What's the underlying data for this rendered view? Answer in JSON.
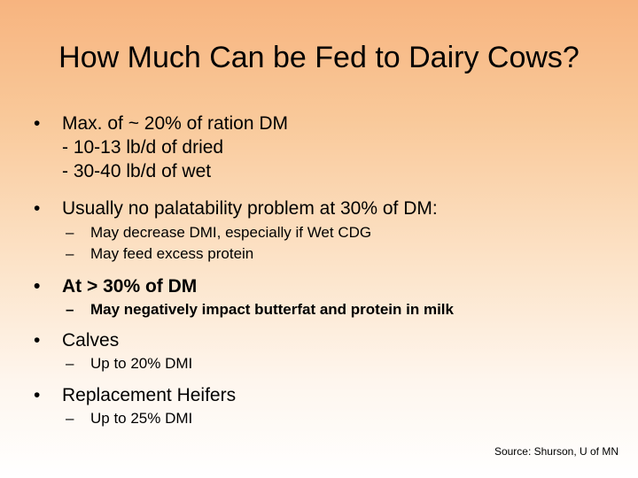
{
  "title": "How Much Can be Fed to Dairy Cows?",
  "bullet_symbol": "•",
  "dash_symbol": "–",
  "bullets": [
    {
      "text": "Max. of ~ 20% of ration DM",
      "lines": [
        "- 10-13 lb/d of dried",
        "- 30-40 lb/d of wet"
      ],
      "subs": []
    },
    {
      "text": "Usually no palatability problem at 30% of DM:",
      "lines": [],
      "subs": [
        "May decrease DMI, especially if Wet CDG",
        "May feed excess protein"
      ]
    },
    {
      "text": "At > 30% of DM",
      "lines": [],
      "subs": [
        "May negatively impact butterfat and protein in milk"
      ]
    },
    {
      "text": "Calves",
      "lines": [],
      "subs": [
        "Up to 20% DMI"
      ]
    },
    {
      "text": "Replacement Heifers",
      "lines": [],
      "subs": [
        "Up to 25% DMI"
      ]
    }
  ],
  "source": "Source: Shurson, U of MN"
}
